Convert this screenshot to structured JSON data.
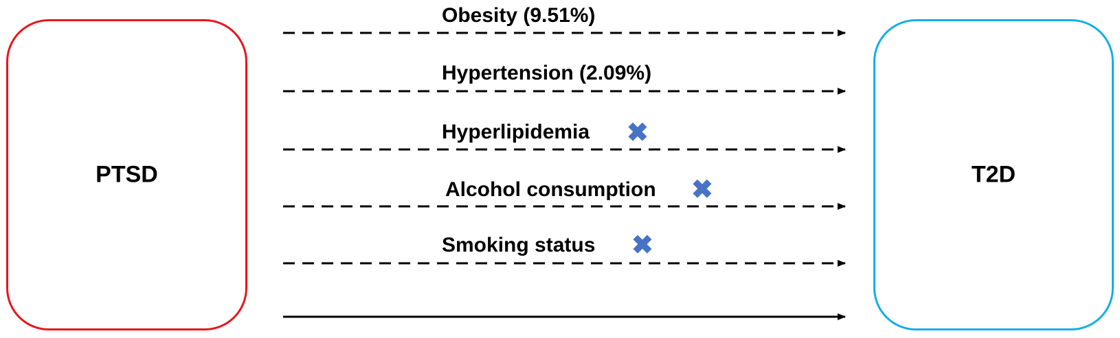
{
  "exposure": {
    "label": "PTSD",
    "color": "#e8151c"
  },
  "outcome": {
    "label": "T2D",
    "color": "#12aee6"
  },
  "mediators": [
    {
      "label": "Obesity (9.51%)",
      "excluded": false
    },
    {
      "label": "Hypertension (2.09%)",
      "excluded": false
    },
    {
      "label": "Hyperlipidemia",
      "excluded": true
    },
    {
      "label": "Alcohol consumption",
      "excluded": true
    },
    {
      "label": "Smoking status",
      "excluded": true
    }
  ],
  "excluded_mark": {
    "glyph": "✖",
    "icon": "cross-mark-icon",
    "color": "#4673c5"
  },
  "arrow_color": "#000000"
}
